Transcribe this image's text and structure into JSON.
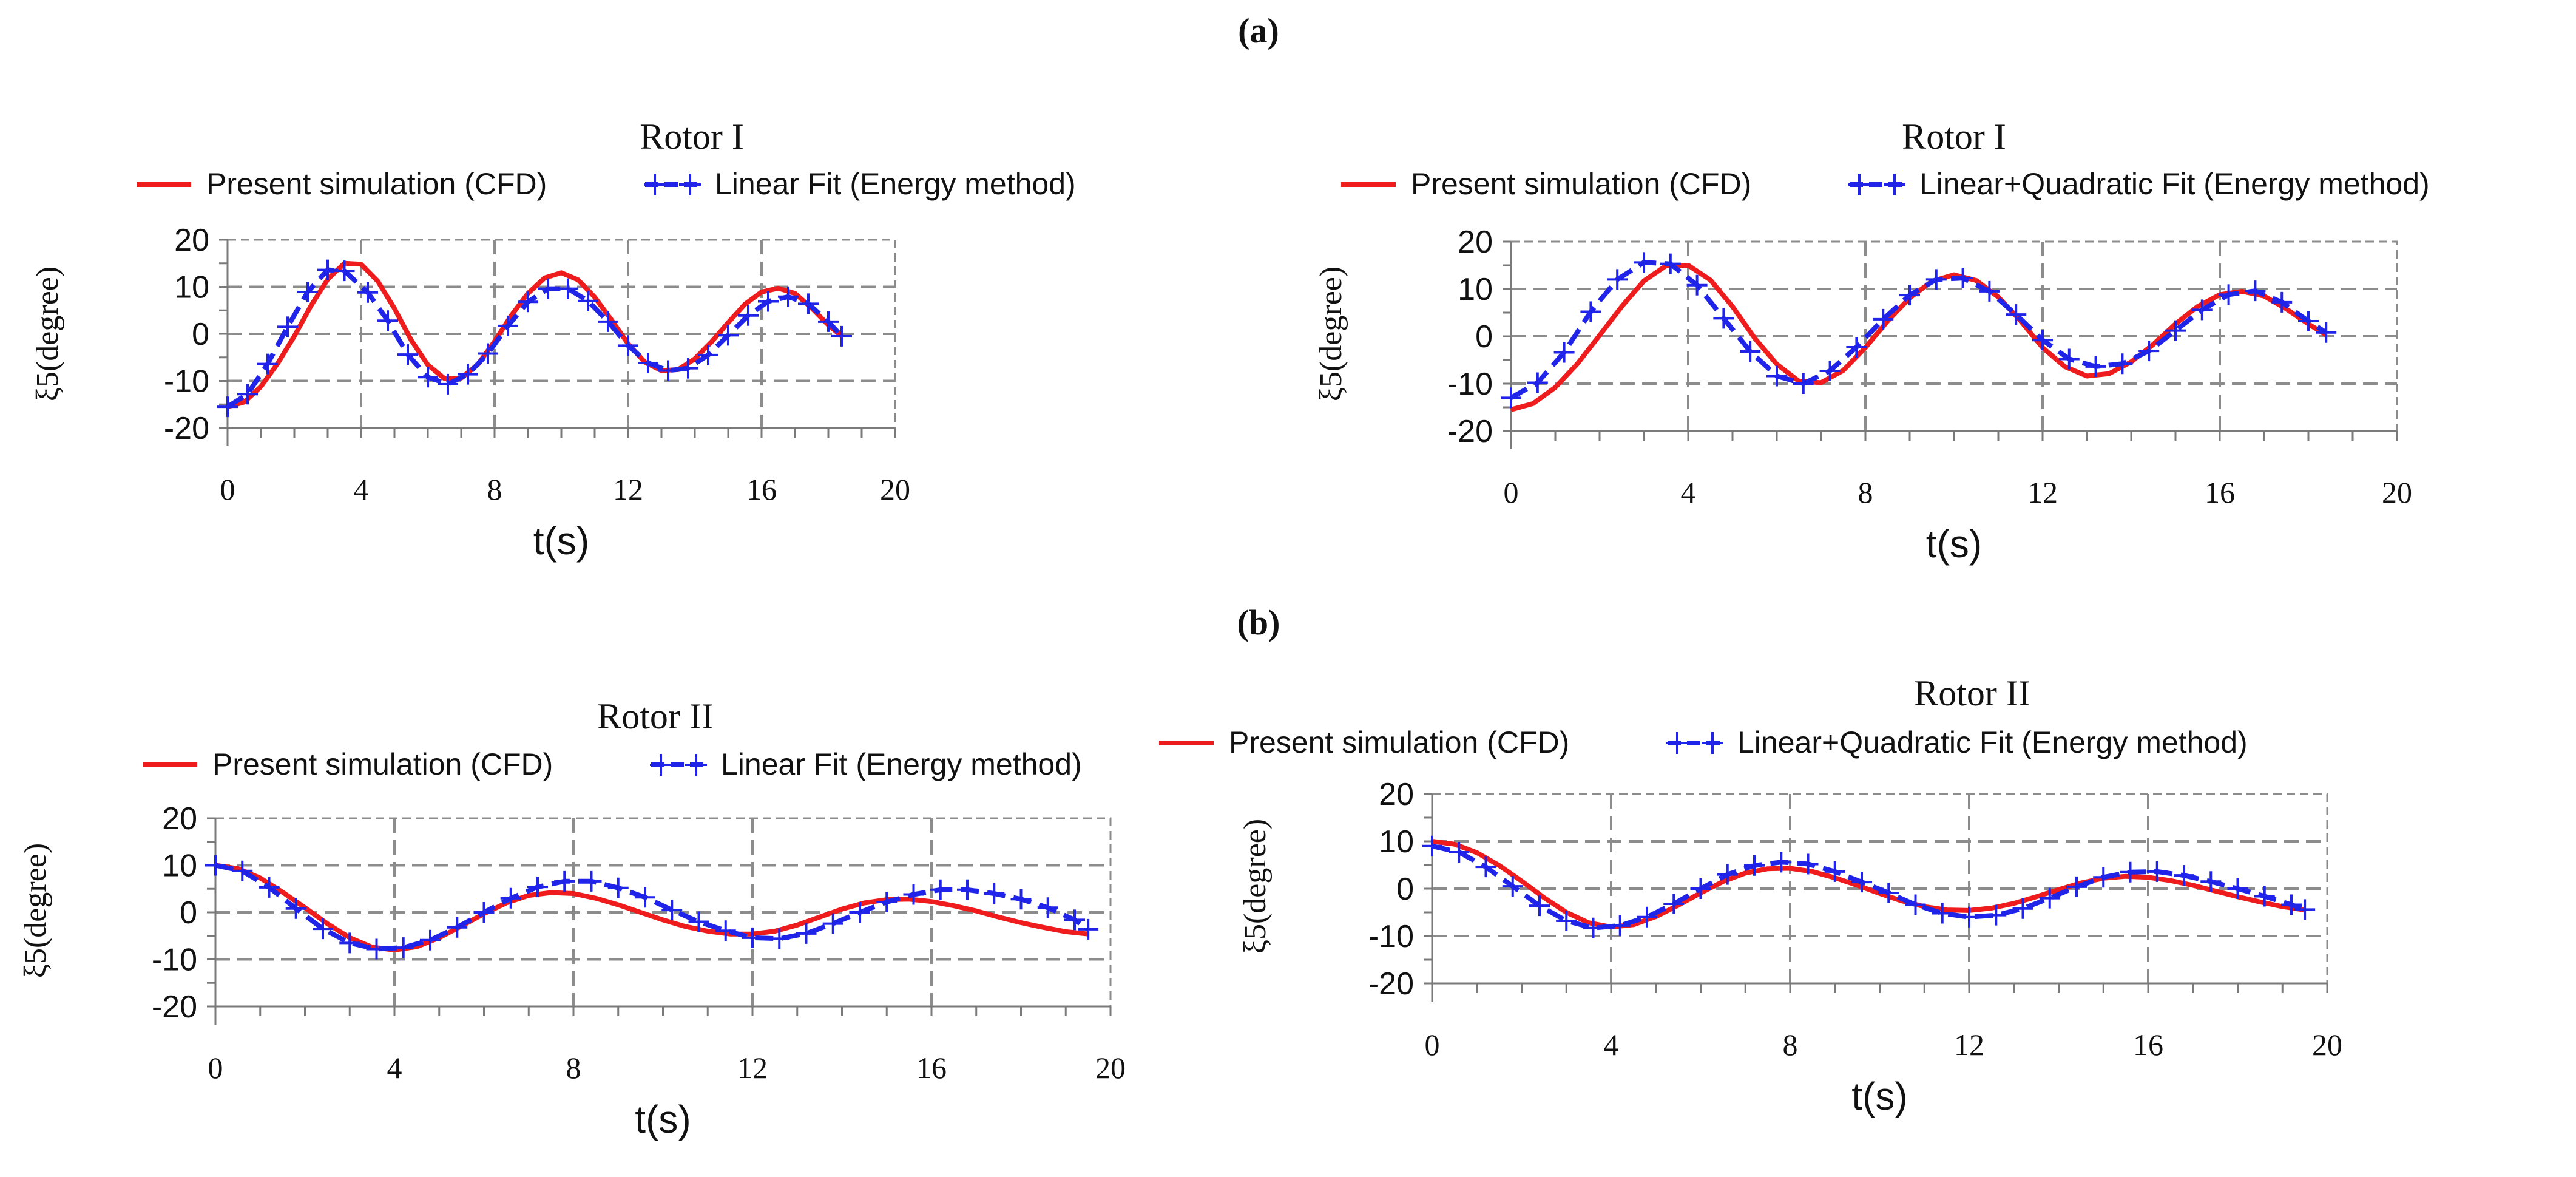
{
  "figure": {
    "labels": [
      "(a)",
      "(b)"
    ]
  },
  "colors": {
    "cfd": "#ee1c1c",
    "fit": "#1f24e8",
    "grid": "#8c8c8c",
    "axis": "#7a7a7a",
    "text": "#111111"
  },
  "chart_data": [
    {
      "type": "line",
      "panel": "a-left",
      "title": "Rotor I",
      "xlabel": "t(s)",
      "ylabel": "ξ5(degree)",
      "xlim": [
        0,
        20
      ],
      "ylim": [
        -20,
        20
      ],
      "xticks": [
        0,
        4,
        8,
        12,
        16,
        20
      ],
      "yticks": [
        20,
        10,
        0,
        -10,
        -20
      ],
      "xtick_labels": [
        "0",
        "4",
        "8",
        "12",
        "16",
        "20"
      ],
      "ytick_labels": [
        "20",
        "10",
        "0",
        "-10",
        "-20"
      ],
      "legend": "top-center",
      "series": [
        {
          "name": "Present simulation (CFD)",
          "style": "solid",
          "x": [
            0,
            0.5,
            1,
            1.5,
            2,
            2.5,
            3,
            3.5,
            4,
            4.5,
            5,
            5.5,
            6,
            6.5,
            7,
            7.5,
            8,
            8.5,
            9,
            9.5,
            10,
            10.5,
            11,
            11.5,
            12,
            12.5,
            13,
            13.5,
            14,
            14.5,
            15,
            15.5,
            16,
            16.5,
            17,
            17.5,
            18,
            18.4
          ],
          "y": [
            -15.5,
            -14.5,
            -11.2,
            -6.3,
            -0.5,
            6,
            11.6,
            15,
            14.8,
            11.2,
            5.4,
            -1.3,
            -6.6,
            -9.5,
            -9.4,
            -6.5,
            -1.6,
            3.9,
            8.6,
            11.9,
            13,
            11.5,
            7.8,
            3,
            -2.1,
            -6,
            -7.8,
            -7.6,
            -5.3,
            -1.7,
            2.4,
            6.3,
            8.9,
            9.7,
            8.6,
            5.5,
            1.9,
            -0.5
          ]
        },
        {
          "name": "Linear Fit (Energy method)",
          "style": "dashed-plus",
          "x": [
            0,
            0.6,
            1.2,
            1.8,
            2.4,
            3,
            3.5,
            4.2,
            4.8,
            5.4,
            6,
            6.6,
            7.2,
            7.8,
            8.4,
            9,
            9.6,
            10.2,
            10.8,
            11.4,
            12,
            12.6,
            13.2,
            13.8,
            14.4,
            15,
            15.6,
            16.2,
            16.8,
            17.4,
            18,
            18.4
          ],
          "y": [
            -15.5,
            -12.8,
            -6.4,
            1.5,
            8.9,
            13.6,
            13.4,
            8.8,
            2.8,
            -4.4,
            -9.2,
            -10.7,
            -8.6,
            -4.2,
            1.7,
            6.8,
            9.6,
            9.6,
            7,
            2.6,
            -2.5,
            -6.2,
            -7.8,
            -7.3,
            -4.5,
            -0.3,
            3.9,
            6.9,
            7.9,
            6.4,
            2.6,
            -0.5
          ]
        }
      ]
    },
    {
      "type": "line",
      "panel": "a-right",
      "title": "Rotor I",
      "xlabel": "t(s)",
      "ylabel": "ξ5(degree)",
      "xlim": [
        0,
        20
      ],
      "ylim": [
        -20,
        20
      ],
      "xticks": [
        0,
        4,
        8,
        12,
        16,
        20
      ],
      "yticks": [
        20,
        10,
        0,
        -10,
        -20
      ],
      "xtick_labels": [
        "0",
        "4",
        "8",
        "12",
        "16",
        "20"
      ],
      "ytick_labels": [
        "20",
        "10",
        "0",
        "-10",
        "-20"
      ],
      "legend": "top-center",
      "series": [
        {
          "name": "Present simulation (CFD)",
          "style": "solid",
          "x": [
            0,
            0.5,
            1,
            1.5,
            2,
            2.5,
            3,
            3.5,
            4,
            4.5,
            5,
            5.5,
            6,
            6.5,
            7,
            7.5,
            8,
            8.5,
            9,
            9.5,
            10,
            10.5,
            11,
            11.5,
            12,
            12.5,
            13,
            13.5,
            14,
            14.5,
            15,
            15.5,
            16,
            16.5,
            17,
            17.5,
            18,
            18.4
          ],
          "y": [
            -15.5,
            -14.2,
            -10.8,
            -5.8,
            0.2,
            6.3,
            11.7,
            14.9,
            15,
            11.9,
            6.3,
            -0.4,
            -5.9,
            -9.5,
            -9.8,
            -7.2,
            -2.4,
            3.2,
            8.1,
            11.6,
            13,
            11.8,
            8.3,
            3.3,
            -2.4,
            -6.4,
            -8.4,
            -7.9,
            -5.4,
            -1.7,
            2.6,
            6.3,
            8.8,
            9.5,
            8.5,
            5.8,
            2.6,
            0.3
          ]
        },
        {
          "name": "Linear+Quadratic Fit (Energy method)",
          "style": "dashed-plus",
          "x": [
            0,
            0.6,
            1.2,
            1.8,
            2.4,
            3,
            3.6,
            4.2,
            4.8,
            5.4,
            6,
            6.6,
            7.2,
            7.8,
            8.4,
            9,
            9.6,
            10.2,
            10.8,
            11.4,
            12,
            12.6,
            13.2,
            13.8,
            14.4,
            15,
            15.6,
            16.2,
            16.8,
            17.4,
            18,
            18.4
          ],
          "y": [
            -13,
            -9.8,
            -3.4,
            5.2,
            12,
            15.6,
            15.3,
            10.8,
            3.8,
            -3.2,
            -8.4,
            -10,
            -7.3,
            -2.3,
            3.6,
            8.7,
            12,
            12.3,
            9.5,
            4.6,
            -0.8,
            -4.8,
            -6.4,
            -5.8,
            -3.1,
            1.2,
            5.6,
            8.8,
            9.6,
            7.2,
            3.2,
            0.8
          ]
        }
      ]
    },
    {
      "type": "line",
      "panel": "b-left",
      "title": "Rotor II",
      "xlabel": "t(s)",
      "ylabel": "ξ5(degree)",
      "xlim": [
        0,
        20
      ],
      "ylim": [
        -20,
        20
      ],
      "xticks": [
        0,
        4,
        8,
        12,
        16,
        20
      ],
      "yticks": [
        20,
        10,
        0,
        -10,
        -20
      ],
      "xtick_labels": [
        "0",
        "4",
        "8",
        "12",
        "16",
        "20"
      ],
      "ytick_labels": [
        "20",
        "10",
        "0",
        "-10",
        "-20"
      ],
      "legend": "top-center",
      "series": [
        {
          "name": "Present simulation (CFD)",
          "style": "solid",
          "x": [
            0,
            0.5,
            1,
            1.5,
            2,
            2.5,
            3,
            3.5,
            4,
            4.5,
            5,
            5.5,
            6,
            6.5,
            7,
            7.5,
            8,
            8.5,
            9,
            9.5,
            10,
            10.5,
            11,
            11.5,
            12,
            12.5,
            13,
            13.5,
            14,
            14.5,
            15,
            15.5,
            16,
            16.5,
            17,
            17.5,
            18,
            18.5,
            19,
            19.5
          ],
          "y": [
            10,
            9.3,
            7.3,
            4.3,
            1,
            -2.4,
            -5.4,
            -7.4,
            -8,
            -7.3,
            -5.4,
            -2.9,
            -0.3,
            2,
            3.6,
            4.2,
            4,
            3,
            1.6,
            0,
            -1.6,
            -3,
            -4,
            -4.6,
            -4.6,
            -4,
            -2.7,
            -1,
            0.7,
            2,
            2.7,
            2.8,
            2.3,
            1.4,
            0.3,
            -1,
            -2.2,
            -3.2,
            -4.1,
            -4.6
          ]
        },
        {
          "name": "Linear Fit (Energy method)",
          "style": "dashed-plus",
          "x": [
            0,
            0.6,
            1.2,
            1.8,
            2.4,
            3,
            3.6,
            4.2,
            4.8,
            5.4,
            6,
            6.6,
            7.2,
            7.8,
            8.4,
            9,
            9.6,
            10.2,
            10.8,
            11.4,
            12,
            12.6,
            13.2,
            13.8,
            14.4,
            15,
            15.6,
            16.2,
            16.8,
            17.4,
            18,
            18.6,
            19.2,
            19.5
          ],
          "y": [
            10,
            8.8,
            5.3,
            0.8,
            -3.5,
            -6.5,
            -7.8,
            -7.5,
            -5.9,
            -3.2,
            0,
            3,
            5.4,
            6.6,
            6.6,
            5.2,
            3.2,
            0.5,
            -2,
            -3.9,
            -5.4,
            -5.6,
            -4.5,
            -2.4,
            0,
            2.2,
            3.8,
            4.8,
            4.8,
            4,
            2.8,
            1,
            -1.6,
            -3.6
          ]
        }
      ]
    },
    {
      "type": "line",
      "panel": "b-right",
      "title": "Rotor II",
      "xlabel": "t(s)",
      "ylabel": "ξ5(degree)",
      "xlim": [
        0,
        20
      ],
      "ylim": [
        -20,
        20
      ],
      "xticks": [
        0,
        4,
        8,
        12,
        16,
        20
      ],
      "yticks": [
        20,
        10,
        0,
        -10,
        -20
      ],
      "xtick_labels": [
        "0",
        "4",
        "8",
        "12",
        "16",
        "20"
      ],
      "ytick_labels": [
        "20",
        "10",
        "0",
        "-10",
        "-20"
      ],
      "legend": "top-center",
      "series": [
        {
          "name": "Present simulation (CFD)",
          "style": "solid",
          "x": [
            0,
            0.5,
            1,
            1.5,
            2,
            2.5,
            3,
            3.5,
            4,
            4.5,
            5,
            5.5,
            6,
            6.5,
            7,
            7.5,
            8,
            8.5,
            9,
            9.5,
            10,
            10.5,
            11,
            11.5,
            12,
            12.5,
            13,
            13.5,
            14,
            14.5,
            15,
            15.5,
            16,
            16.5,
            17,
            17.5,
            18,
            18.5,
            19,
            19.5
          ],
          "y": [
            10,
            9.4,
            7.6,
            4.9,
            1.6,
            -1.9,
            -5,
            -7.2,
            -8.1,
            -7.6,
            -5.9,
            -3.5,
            -0.9,
            1.5,
            3.3,
            4.2,
            4.3,
            3.6,
            2.3,
            0.7,
            -1,
            -2.6,
            -3.8,
            -4.5,
            -4.6,
            -4.1,
            -3.1,
            -1.7,
            -0.2,
            1.2,
            2.2,
            2.6,
            2.4,
            1.7,
            0.7,
            -0.5,
            -1.7,
            -2.8,
            -3.8,
            -4.5
          ]
        },
        {
          "name": "Linear+Quadratic Fit (Energy method)",
          "style": "dashed-plus",
          "x": [
            0,
            0.6,
            1.2,
            1.8,
            2.4,
            3,
            3.6,
            4.2,
            4.8,
            5.4,
            6,
            6.6,
            7.2,
            7.8,
            8.4,
            9,
            9.6,
            10.2,
            10.8,
            11.4,
            12,
            12.6,
            13.2,
            13.8,
            14.4,
            15,
            15.6,
            16.2,
            16.8,
            17.4,
            18,
            18.6,
            19.2,
            19.5
          ],
          "y": [
            9,
            7.7,
            4.6,
            0.5,
            -3.6,
            -6.8,
            -8.3,
            -7.8,
            -6,
            -3.2,
            0,
            3,
            4.9,
            5.6,
            5.2,
            3.6,
            1.4,
            -0.9,
            -3.4,
            -5.2,
            -6,
            -5.6,
            -4.2,
            -2,
            0.4,
            2.4,
            3.5,
            3.6,
            2.8,
            1.5,
            0,
            -1.6,
            -3.4,
            -4.4
          ]
        }
      ]
    }
  ]
}
